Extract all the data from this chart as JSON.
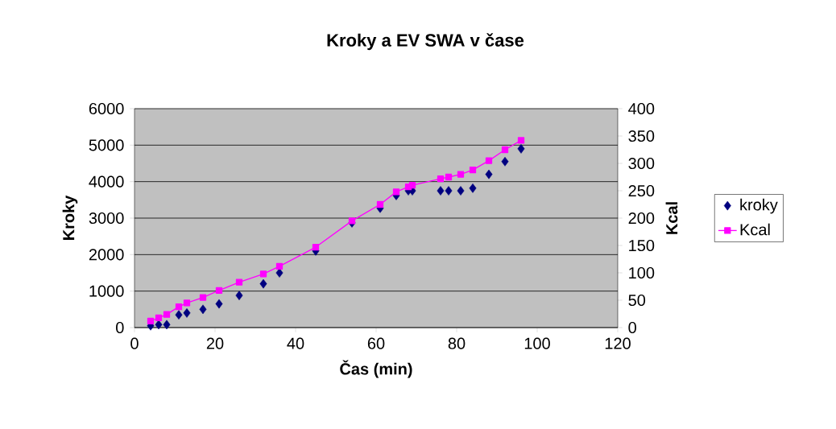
{
  "chart_data": {
    "type": "scatter",
    "title": "Kroky a EV SWA v čase",
    "xlabel": "Čas (min)",
    "ylabel": "Kroky",
    "y2label": "Kcal",
    "x": [
      4,
      6,
      8,
      11,
      13,
      17,
      21,
      26,
      32,
      36,
      45,
      54,
      61,
      65,
      68,
      69,
      76,
      78,
      81,
      84,
      88,
      92,
      96
    ],
    "series": [
      {
        "name": "kroky",
        "marker": "diamond",
        "color": "#000080",
        "values": [
          50,
          80,
          80,
          350,
          400,
          500,
          650,
          880,
          1200,
          1500,
          2100,
          2870,
          3270,
          3620,
          3750,
          3750,
          3750,
          3750,
          3750,
          3820,
          4200,
          4550,
          4900
        ]
      },
      {
        "name": "Kcal",
        "type": "line",
        "axis": "y2",
        "marker": "square",
        "line_style": "solid",
        "color": "#ff00ff",
        "values": [
          12,
          18,
          24,
          38,
          45,
          55,
          68,
          83,
          98,
          112,
          147,
          195,
          225,
          248,
          257,
          260,
          272,
          275,
          280,
          288,
          305,
          325,
          342
        ]
      }
    ],
    "xlim": [
      0,
      120
    ],
    "xticks": [
      0,
      20,
      40,
      60,
      80,
      100,
      120
    ],
    "ylim": [
      0,
      6000
    ],
    "yticks": [
      0,
      1000,
      2000,
      3000,
      4000,
      5000,
      6000
    ],
    "y2lim": [
      0,
      400
    ],
    "y2ticks": [
      0,
      50,
      100,
      150,
      200,
      250,
      300,
      350,
      400
    ],
    "grid": "y",
    "legend": "right"
  }
}
